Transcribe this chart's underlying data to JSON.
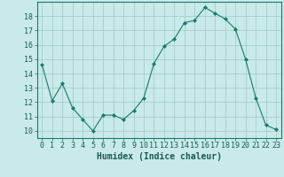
{
  "x": [
    0,
    1,
    2,
    3,
    4,
    5,
    6,
    7,
    8,
    9,
    10,
    11,
    12,
    13,
    14,
    15,
    16,
    17,
    18,
    19,
    20,
    21,
    22,
    23
  ],
  "y": [
    14.6,
    12.1,
    13.3,
    11.6,
    10.8,
    10.0,
    11.1,
    11.1,
    10.8,
    11.4,
    12.3,
    14.7,
    15.9,
    16.4,
    17.55,
    17.7,
    18.6,
    18.2,
    17.8,
    17.1,
    15.0,
    12.3,
    10.4,
    10.1
  ],
  "xlabel": "Humidex (Indice chaleur)",
  "ylim": [
    9.5,
    19.0
  ],
  "xlim": [
    -0.5,
    23.5
  ],
  "yticks": [
    10,
    11,
    12,
    13,
    14,
    15,
    16,
    17,
    18
  ],
  "xticks": [
    0,
    1,
    2,
    3,
    4,
    5,
    6,
    7,
    8,
    9,
    10,
    11,
    12,
    13,
    14,
    15,
    16,
    17,
    18,
    19,
    20,
    21,
    22,
    23
  ],
  "line_color": "#1a7a6e",
  "marker_color": "#1a7a6e",
  "bg_color": "#c8eae8",
  "grid_color": "#a0c8c4",
  "xlabel_fontsize": 7,
  "tick_fontsize": 6
}
